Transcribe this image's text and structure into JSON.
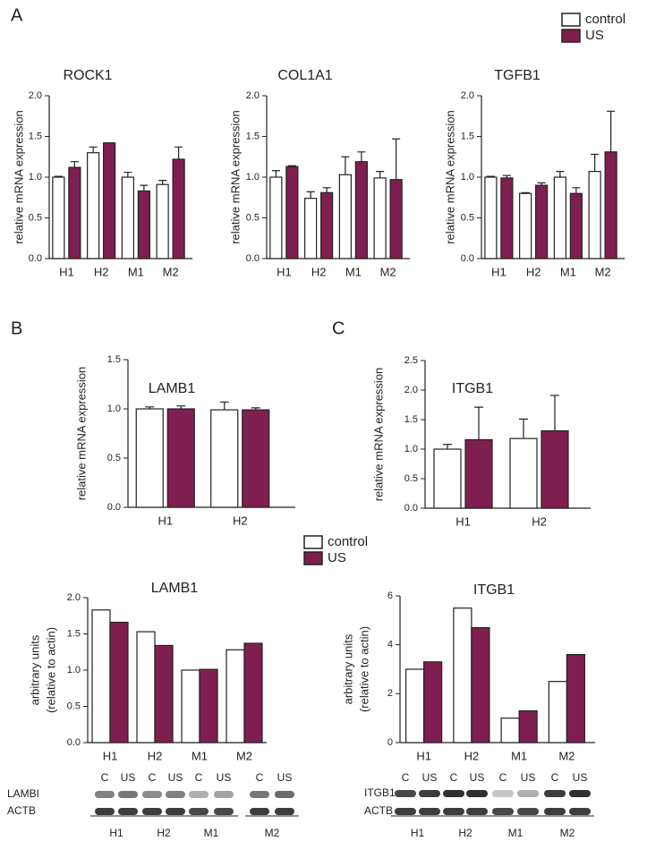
{
  "panel_labels": [
    "A",
    "B",
    "C"
  ],
  "chart_data": [
    {
      "type": "bar",
      "title": "ROCK1",
      "ylabel": "relative mRNA expression",
      "legend": true,
      "categories": [
        "H1",
        "H2",
        "M1",
        "M2"
      ],
      "series": [
        {
          "name": "control",
          "color": "#ffffff",
          "values": [
            1.0,
            1.3,
            1.0,
            0.91
          ],
          "errors": [
            0.01,
            0.07,
            0.06,
            0.05
          ]
        },
        {
          "name": "US",
          "color": "#7f1f4f",
          "values": [
            1.12,
            1.42,
            0.83,
            1.22
          ],
          "errors": [
            0.07,
            0,
            0.07,
            0.15
          ]
        }
      ],
      "ylim": [
        0,
        2
      ],
      "yticks": [
        {
          "value": 0,
          "label": "0.0"
        },
        0.5,
        {
          "value": 1,
          "label": "1.0"
        },
        1.5,
        {
          "value": 2,
          "label": "2.0"
        }
      ]
    },
    {
      "type": "bar",
      "title": "COL1A1",
      "ylabel": "relative mRNA expression",
      "categories": [
        "H1",
        "H2",
        "M1",
        "M2"
      ],
      "series": [
        {
          "name": "control",
          "color": "#ffffff",
          "values": [
            1.0,
            0.74,
            1.03,
            0.99
          ],
          "errors": [
            0.08,
            0.08,
            0.22,
            0.08
          ]
        },
        {
          "name": "US",
          "color": "#7f1f4f",
          "values": [
            1.13,
            0.81,
            1.19,
            0.97
          ],
          "errors": [
            0.01,
            0.06,
            0.12,
            0.5
          ]
        }
      ],
      "ylim": [
        0,
        2
      ],
      "yticks": [
        {
          "value": 0,
          "label": "0.0"
        },
        0.5,
        {
          "value": 1,
          "label": "1.0"
        },
        1.5,
        {
          "value": 2,
          "label": "2.0"
        }
      ]
    },
    {
      "type": "bar",
      "title": "TGFB1",
      "ylabel": "relative mRNA expression",
      "categories": [
        "H1",
        "H2",
        "M1",
        "M2"
      ],
      "series": [
        {
          "name": "control",
          "color": "#ffffff",
          "values": [
            1.0,
            0.8,
            1.0,
            1.07
          ],
          "errors": [
            0.01,
            0.01,
            0.07,
            0.21
          ]
        },
        {
          "name": "US",
          "color": "#7f1f4f",
          "values": [
            0.99,
            0.9,
            0.8,
            1.31
          ],
          "errors": [
            0.03,
            0.03,
            0.07,
            0.5
          ]
        }
      ],
      "ylim": [
        0,
        2
      ],
      "yticks": [
        {
          "value": 0,
          "label": "0.0"
        },
        0.5,
        {
          "value": 1,
          "label": "1.0"
        },
        1.5,
        {
          "value": 2,
          "label": "2.0"
        }
      ]
    },
    {
      "type": "bar",
      "title": "LAMB1",
      "ylabel": "relative mRNA expression",
      "legend": true,
      "categories": [
        "H1",
        "H2"
      ],
      "series": [
        {
          "name": "control",
          "color": "#ffffff",
          "values": [
            1.0,
            0.99
          ],
          "errors": [
            0.02,
            0.08
          ]
        },
        {
          "name": "US",
          "color": "#7f1f4f",
          "values": [
            1.0,
            0.99
          ],
          "errors": [
            0.03,
            0.02
          ]
        }
      ],
      "ylim": [
        0,
        1.5
      ],
      "yticks": [
        {
          "value": 0,
          "label": "0.0"
        },
        0.5,
        {
          "value": 1,
          "label": "1.0"
        },
        1.5
      ]
    },
    {
      "type": "bar",
      "title": "ITGB1",
      "ylabel": "relative mRNA expression",
      "categories": [
        "H1",
        "H2"
      ],
      "series": [
        {
          "name": "control",
          "color": "#ffffff",
          "values": [
            1.0,
            1.18
          ],
          "errors": [
            0.08,
            0.33
          ]
        },
        {
          "name": "US",
          "color": "#7f1f4f",
          "values": [
            1.16,
            1.31
          ],
          "errors": [
            0.55,
            0.6
          ]
        }
      ],
      "ylim": [
        0,
        2.5
      ],
      "yticks": [
        {
          "value": 0,
          "label": "0.0"
        },
        0.5,
        {
          "value": 1,
          "label": "1.0"
        },
        1.5,
        {
          "value": 2,
          "label": "2.0"
        },
        2.5
      ]
    },
    {
      "type": "bar",
      "title": "LAMB1",
      "ylabel": [
        "arbitrary units",
        "(relative to actin)"
      ],
      "categories": [
        "H1",
        "H2",
        "M1",
        "M2"
      ],
      "series": [
        {
          "name": "control",
          "color": "#ffffff",
          "values": [
            1.83,
            1.53,
            1.0,
            1.28
          ]
        },
        {
          "name": "US",
          "color": "#7f1f4f",
          "values": [
            1.66,
            1.34,
            1.01,
            1.37
          ]
        }
      ],
      "ylim": [
        0,
        2
      ],
      "yticks": [
        {
          "value": 0,
          "label": "0.0"
        },
        0.5,
        {
          "value": 1,
          "label": "1.0"
        },
        1.5,
        {
          "value": 2,
          "label": "2.0"
        }
      ]
    },
    {
      "type": "bar",
      "title": "ITGB1",
      "ylabel": [
        "arbitrary units",
        "(relative to actin)"
      ],
      "categories": [
        "H1",
        "H2",
        "M1",
        "M2"
      ],
      "series": [
        {
          "name": "control",
          "color": "#ffffff",
          "values": [
            3.0,
            5.5,
            1.0,
            2.5
          ]
        },
        {
          "name": "US",
          "color": "#7f1f4f",
          "values": [
            3.3,
            4.7,
            1.3,
            3.6
          ]
        }
      ],
      "ylim": [
        0,
        6
      ],
      "yticks": [
        0,
        2,
        4,
        6
      ]
    }
  ],
  "blots": [
    {
      "lanes": [
        "C",
        "US",
        "C",
        "US",
        "C",
        "US",
        "C",
        "US"
      ],
      "rows": [
        "LAMBI",
        "ACTB"
      ],
      "groups": [
        "H1",
        "H2",
        "M1",
        "M2"
      ]
    },
    {
      "lanes": [
        "C",
        "US",
        "C",
        "US",
        "C",
        "US",
        "C",
        "US"
      ],
      "rows": [
        "ITGB1",
        "ACTB"
      ],
      "groups": [
        "H1",
        "H2",
        "M1",
        "M2"
      ]
    }
  ]
}
